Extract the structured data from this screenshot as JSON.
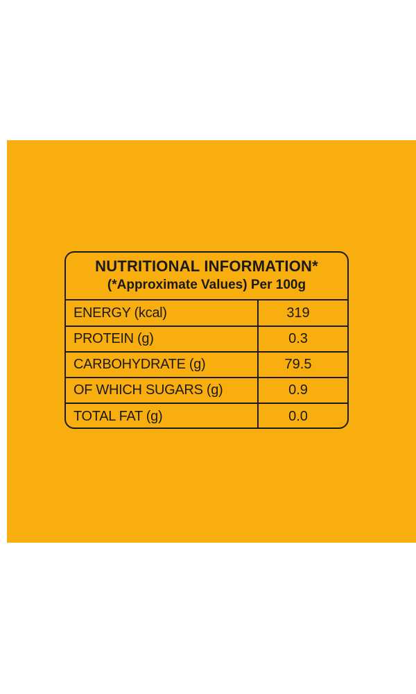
{
  "label": {
    "title": "NUTRITIONAL INFORMATION*",
    "subtitle": "(*Approximate Values) Per 100g",
    "rows": [
      {
        "nutrient": "ENERGY (kcal)",
        "value": "319"
      },
      {
        "nutrient": "PROTEIN (g)",
        "value": "0.3"
      },
      {
        "nutrient": "CARBOHYDRATE (g)",
        "value": "79.5"
      },
      {
        "nutrient": "OF WHICH SUGARS (g)",
        "value": "0.9"
      },
      {
        "nutrient": "TOTAL FAT (g)",
        "value": "0.0"
      }
    ]
  },
  "colors": {
    "background": "#f9ae10",
    "ink": "#1c1a14"
  }
}
